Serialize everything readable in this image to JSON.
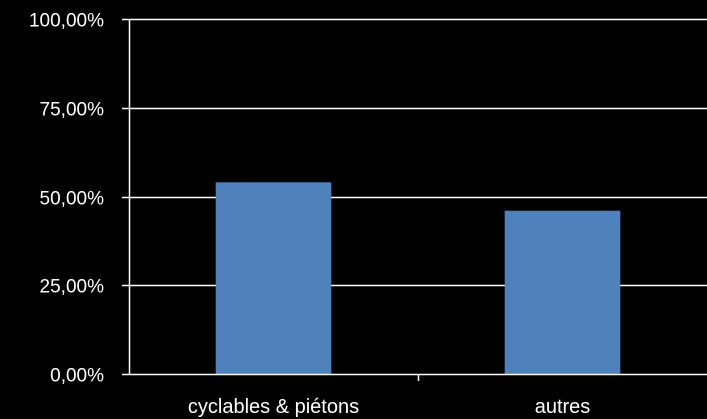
{
  "chart_data": {
    "type": "bar",
    "title": "",
    "xlabel": "",
    "ylabel": "",
    "categories": [
      "cyclables & piétons",
      "autres"
    ],
    "values": [
      0.54,
      0.46
    ],
    "ylim": [
      0,
      1
    ],
    "y_ticks": [
      0,
      0.25,
      0.5,
      0.75,
      1
    ],
    "y_tick_labels": [
      "0,00%",
      "25,00%",
      "50,00%",
      "75,00%",
      "100,00%"
    ],
    "grid": true,
    "legend": "none",
    "colors": {
      "background": "#000000",
      "bar": "#4F81BD",
      "gridline": "#FFFFFF",
      "axis": "#FFFFFF",
      "text": "#FFFFFF"
    }
  }
}
